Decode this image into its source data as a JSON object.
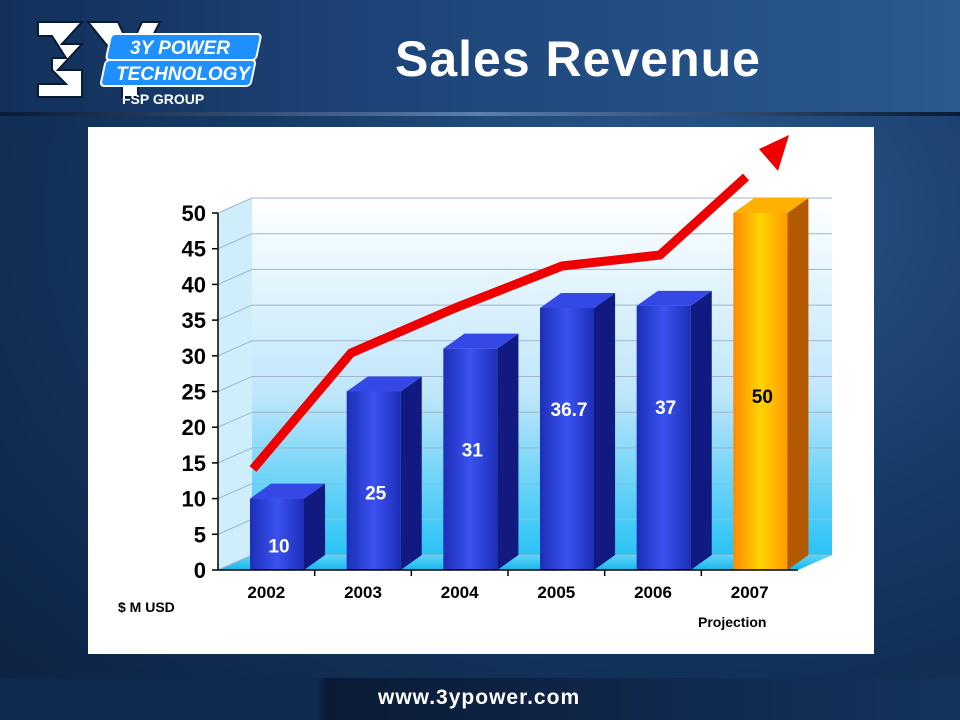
{
  "header": {
    "title": "Sales Revenue"
  },
  "logo": {
    "line1": "3Y POWER",
    "line2": "TECHNOLOGY",
    "line3": "FSP GROUP"
  },
  "footer": {
    "url": "www.3ypower.com"
  },
  "chart_data": {
    "type": "bar",
    "categories": [
      "2002",
      "2003",
      "2004",
      "2005",
      "2006",
      "2007"
    ],
    "values": [
      10,
      25,
      31,
      36.7,
      37,
      50
    ],
    "data_labels": [
      "10",
      "25",
      "31",
      "36.7",
      "37",
      "50"
    ],
    "ylim": [
      0,
      50
    ],
    "yticks": [
      "0",
      "5",
      "10",
      "15",
      "20",
      "25",
      "30",
      "35",
      "40",
      "45",
      "50"
    ],
    "ylabel": "$ M USD",
    "annotation": "Projection",
    "grid": true,
    "colors": {
      "actual": "#2233cc",
      "projection": "#ff9900",
      "trend": "#ee0000"
    }
  }
}
